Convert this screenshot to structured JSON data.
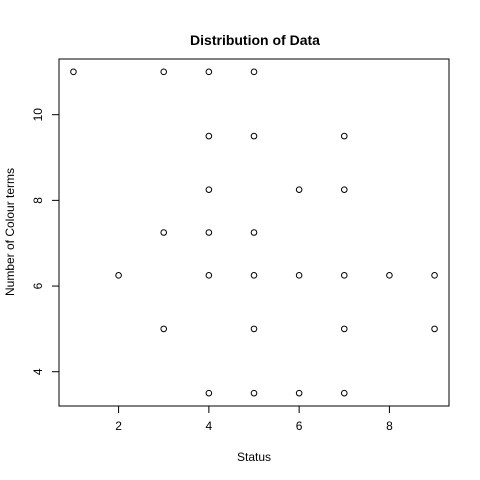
{
  "chart_data": {
    "type": "scatter",
    "title": "Distribution of Data",
    "xlabel": "Status",
    "ylabel": "Number of Colour terms",
    "xlim": [
      1,
      9
    ],
    "ylim": [
      3.5,
      11
    ],
    "xticks": [
      2,
      4,
      6,
      8
    ],
    "yticks": [
      4,
      6,
      8,
      10
    ],
    "grid": false,
    "marker": "open-circle",
    "points": [
      {
        "x": 1,
        "y": 11
      },
      {
        "x": 3,
        "y": 11
      },
      {
        "x": 4,
        "y": 11
      },
      {
        "x": 5,
        "y": 11
      },
      {
        "x": 4,
        "y": 9.5
      },
      {
        "x": 5,
        "y": 9.5
      },
      {
        "x": 7,
        "y": 9.5
      },
      {
        "x": 4,
        "y": 8.25
      },
      {
        "x": 6,
        "y": 8.25
      },
      {
        "x": 7,
        "y": 8.25
      },
      {
        "x": 3,
        "y": 7.25
      },
      {
        "x": 4,
        "y": 7.25
      },
      {
        "x": 5,
        "y": 7.25
      },
      {
        "x": 2,
        "y": 6.25
      },
      {
        "x": 4,
        "y": 6.25
      },
      {
        "x": 5,
        "y": 6.25
      },
      {
        "x": 6,
        "y": 6.25
      },
      {
        "x": 7,
        "y": 6.25
      },
      {
        "x": 8,
        "y": 6.25
      },
      {
        "x": 9,
        "y": 6.25
      },
      {
        "x": 3,
        "y": 5
      },
      {
        "x": 5,
        "y": 5
      },
      {
        "x": 7,
        "y": 5
      },
      {
        "x": 9,
        "y": 5
      },
      {
        "x": 4,
        "y": 3.5
      },
      {
        "x": 5,
        "y": 3.5
      },
      {
        "x": 6,
        "y": 3.5
      },
      {
        "x": 7,
        "y": 3.5
      }
    ]
  }
}
